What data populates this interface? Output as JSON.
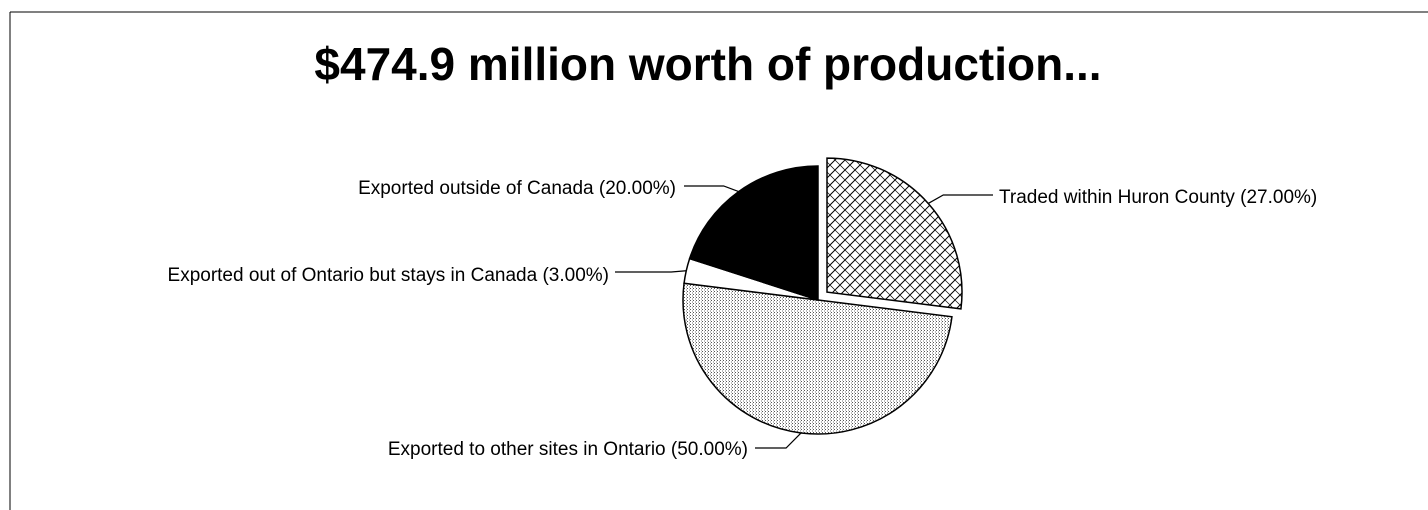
{
  "chart_data": {
    "type": "pie",
    "title": "$474.9 million worth of production...",
    "slices": [
      {
        "label": "Traded within Huron County (27.00%)",
        "value": 27,
        "exploded": true,
        "fill": "crosshatch"
      },
      {
        "label": "Exported to other sites in Ontario (50.00%)",
        "value": 50,
        "exploded": false,
        "fill": "dots"
      },
      {
        "label": "Exported out of Ontario but stays in Canada (3.00%)",
        "value": 3,
        "exploded": false,
        "fill": "white"
      },
      {
        "label": "Exported outside of Canada (20.00%)",
        "value": 20,
        "exploded": false,
        "fill": "black"
      }
    ],
    "colors": {
      "outline": "#000000",
      "background": "#ffffff",
      "solid": "#000000"
    }
  }
}
